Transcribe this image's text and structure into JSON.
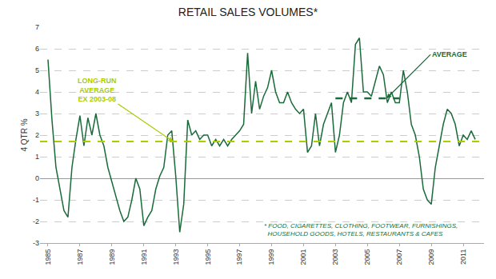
{
  "chart_data": {
    "type": "line",
    "title": "RETAIL SALES VOLUMES*",
    "y_label": "4 QTR %",
    "color": "#1a6b3a",
    "x": [
      1985.0,
      1985.25,
      1985.5,
      1985.75,
      1986.0,
      1986.25,
      1986.5,
      1986.75,
      1987.0,
      1987.25,
      1987.5,
      1987.75,
      1988.0,
      1988.25,
      1988.5,
      1988.75,
      1989.0,
      1989.25,
      1989.5,
      1989.75,
      1990.0,
      1990.25,
      1990.5,
      1990.75,
      1991.0,
      1991.25,
      1991.5,
      1991.75,
      1992.0,
      1992.25,
      1992.5,
      1992.75,
      1993.0,
      1993.25,
      1993.5,
      1993.75,
      1994.0,
      1994.25,
      1994.5,
      1994.75,
      1995.0,
      1995.25,
      1995.5,
      1995.75,
      1996.0,
      1996.25,
      1996.5,
      1996.75,
      1997.0,
      1997.25,
      1997.5,
      1997.75,
      1998.0,
      1998.25,
      1998.5,
      1998.75,
      1999.0,
      1999.25,
      1999.5,
      1999.75,
      2000.0,
      2000.25,
      2000.5,
      2000.75,
      2001.0,
      2001.25,
      2001.5,
      2001.75,
      2002.0,
      2002.25,
      2002.5,
      2002.75,
      2003.0,
      2003.25,
      2003.5,
      2003.75,
      2004.0,
      2004.25,
      2004.5,
      2004.75,
      2005.0,
      2005.25,
      2005.5,
      2005.75,
      2006.0,
      2006.25,
      2006.5,
      2006.75,
      2007.0,
      2007.25,
      2007.5,
      2007.75,
      2008.0,
      2008.25,
      2008.5,
      2008.75,
      2009.0,
      2009.25,
      2009.5,
      2009.75,
      2010.0,
      2010.25,
      2010.5,
      2010.75,
      2011.0,
      2011.25,
      2011.5,
      2011.75
    ],
    "values": [
      5.5,
      2.7,
      0.5,
      -0.5,
      -1.5,
      -1.8,
      0.5,
      1.8,
      2.9,
      1.5,
      2.8,
      2.0,
      3.0,
      2.0,
      1.5,
      0.5,
      -0.2,
      -0.8,
      -1.5,
      -2.0,
      -1.8,
      -1.0,
      0.0,
      -0.5,
      -2.2,
      -1.8,
      -1.5,
      -0.5,
      0.1,
      0.5,
      2.0,
      2.2,
      0.1,
      -2.5,
      -1.2,
      2.7,
      2.0,
      2.2,
      1.8,
      2.0,
      2.0,
      1.5,
      1.8,
      1.5,
      1.8,
      1.5,
      1.8,
      2.0,
      2.2,
      2.5,
      5.8,
      3.0,
      4.5,
      3.2,
      3.8,
      4.2,
      5.0,
      4.0,
      3.5,
      3.5,
      4.0,
      3.5,
      3.2,
      3.0,
      3.2,
      1.2,
      1.5,
      3.0,
      1.5,
      2.5,
      3.0,
      3.5,
      1.2,
      2.0,
      3.5,
      4.0,
      3.5,
      6.2,
      6.5,
      4.0,
      4.0,
      3.8,
      4.5,
      5.2,
      4.8,
      3.5,
      4.0,
      3.5,
      3.5,
      5.0,
      4.0,
      2.5,
      2.0,
      1.0,
      -0.5,
      -1.0,
      -1.2,
      0.5,
      1.5,
      2.5,
      3.2,
      3.0,
      2.5,
      1.5,
      2.0,
      1.8,
      2.2,
      1.8
    ],
    "xlim": [
      1984.5,
      2012.3
    ],
    "ylim": [
      -3,
      7
    ],
    "xticks": [
      1985,
      1987,
      1989,
      1991,
      1993,
      1995,
      1997,
      1999,
      2001,
      2003,
      2005,
      2007,
      2009,
      2011
    ],
    "yticks": [
      -3,
      -2,
      -1,
      0,
      1,
      2,
      3,
      4,
      5,
      6,
      7
    ],
    "grid": true,
    "reference_lines": [
      {
        "value": 1.7,
        "label": "LONG-RUN\nAVERAGE\nEX 2003-08",
        "color": "#aacc00",
        "line_style": "dashed"
      },
      {
        "value": 3.7,
        "x": [
          2003.0,
          2007.0
        ],
        "label": "AVERAGE",
        "color": "#1a6b3a",
        "line_style": "dashed"
      }
    ],
    "footnote": [
      "* FOOD, CIGARETTES, CLOTHING, FOOTWEAR, FURNISHINGS,",
      "  HOUSEHOLD GOODS, HOTELS, RESTAURANTS & CAFES"
    ]
  }
}
